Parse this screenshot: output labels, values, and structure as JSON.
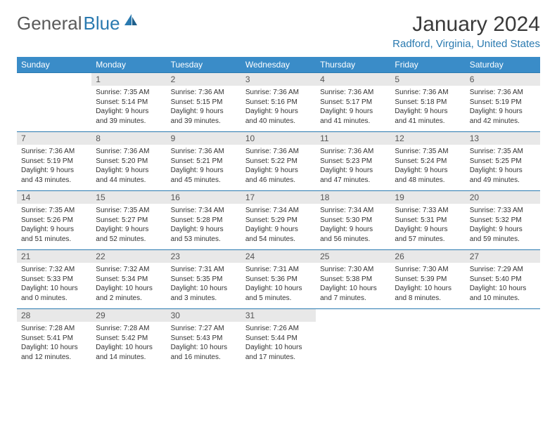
{
  "brand": {
    "part1": "General",
    "part2": "Blue"
  },
  "title": "January 2024",
  "location": "Radford, Virginia, United States",
  "colors": {
    "header_bg": "#3a8cc8",
    "accent": "#2a7ab0",
    "daynum_bg": "#e8e8e8",
    "text": "#333333"
  },
  "day_labels": [
    "Sunday",
    "Monday",
    "Tuesday",
    "Wednesday",
    "Thursday",
    "Friday",
    "Saturday"
  ],
  "weeks": [
    [
      {
        "n": "",
        "l1": "",
        "l2": "",
        "l3": "",
        "l4": ""
      },
      {
        "n": "1",
        "l1": "Sunrise: 7:35 AM",
        "l2": "Sunset: 5:14 PM",
        "l3": "Daylight: 9 hours",
        "l4": "and 39 minutes."
      },
      {
        "n": "2",
        "l1": "Sunrise: 7:36 AM",
        "l2": "Sunset: 5:15 PM",
        "l3": "Daylight: 9 hours",
        "l4": "and 39 minutes."
      },
      {
        "n": "3",
        "l1": "Sunrise: 7:36 AM",
        "l2": "Sunset: 5:16 PM",
        "l3": "Daylight: 9 hours",
        "l4": "and 40 minutes."
      },
      {
        "n": "4",
        "l1": "Sunrise: 7:36 AM",
        "l2": "Sunset: 5:17 PM",
        "l3": "Daylight: 9 hours",
        "l4": "and 41 minutes."
      },
      {
        "n": "5",
        "l1": "Sunrise: 7:36 AM",
        "l2": "Sunset: 5:18 PM",
        "l3": "Daylight: 9 hours",
        "l4": "and 41 minutes."
      },
      {
        "n": "6",
        "l1": "Sunrise: 7:36 AM",
        "l2": "Sunset: 5:19 PM",
        "l3": "Daylight: 9 hours",
        "l4": "and 42 minutes."
      }
    ],
    [
      {
        "n": "7",
        "l1": "Sunrise: 7:36 AM",
        "l2": "Sunset: 5:19 PM",
        "l3": "Daylight: 9 hours",
        "l4": "and 43 minutes."
      },
      {
        "n": "8",
        "l1": "Sunrise: 7:36 AM",
        "l2": "Sunset: 5:20 PM",
        "l3": "Daylight: 9 hours",
        "l4": "and 44 minutes."
      },
      {
        "n": "9",
        "l1": "Sunrise: 7:36 AM",
        "l2": "Sunset: 5:21 PM",
        "l3": "Daylight: 9 hours",
        "l4": "and 45 minutes."
      },
      {
        "n": "10",
        "l1": "Sunrise: 7:36 AM",
        "l2": "Sunset: 5:22 PM",
        "l3": "Daylight: 9 hours",
        "l4": "and 46 minutes."
      },
      {
        "n": "11",
        "l1": "Sunrise: 7:36 AM",
        "l2": "Sunset: 5:23 PM",
        "l3": "Daylight: 9 hours",
        "l4": "and 47 minutes."
      },
      {
        "n": "12",
        "l1": "Sunrise: 7:35 AM",
        "l2": "Sunset: 5:24 PM",
        "l3": "Daylight: 9 hours",
        "l4": "and 48 minutes."
      },
      {
        "n": "13",
        "l1": "Sunrise: 7:35 AM",
        "l2": "Sunset: 5:25 PM",
        "l3": "Daylight: 9 hours",
        "l4": "and 49 minutes."
      }
    ],
    [
      {
        "n": "14",
        "l1": "Sunrise: 7:35 AM",
        "l2": "Sunset: 5:26 PM",
        "l3": "Daylight: 9 hours",
        "l4": "and 51 minutes."
      },
      {
        "n": "15",
        "l1": "Sunrise: 7:35 AM",
        "l2": "Sunset: 5:27 PM",
        "l3": "Daylight: 9 hours",
        "l4": "and 52 minutes."
      },
      {
        "n": "16",
        "l1": "Sunrise: 7:34 AM",
        "l2": "Sunset: 5:28 PM",
        "l3": "Daylight: 9 hours",
        "l4": "and 53 minutes."
      },
      {
        "n": "17",
        "l1": "Sunrise: 7:34 AM",
        "l2": "Sunset: 5:29 PM",
        "l3": "Daylight: 9 hours",
        "l4": "and 54 minutes."
      },
      {
        "n": "18",
        "l1": "Sunrise: 7:34 AM",
        "l2": "Sunset: 5:30 PM",
        "l3": "Daylight: 9 hours",
        "l4": "and 56 minutes."
      },
      {
        "n": "19",
        "l1": "Sunrise: 7:33 AM",
        "l2": "Sunset: 5:31 PM",
        "l3": "Daylight: 9 hours",
        "l4": "and 57 minutes."
      },
      {
        "n": "20",
        "l1": "Sunrise: 7:33 AM",
        "l2": "Sunset: 5:32 PM",
        "l3": "Daylight: 9 hours",
        "l4": "and 59 minutes."
      }
    ],
    [
      {
        "n": "21",
        "l1": "Sunrise: 7:32 AM",
        "l2": "Sunset: 5:33 PM",
        "l3": "Daylight: 10 hours",
        "l4": "and 0 minutes."
      },
      {
        "n": "22",
        "l1": "Sunrise: 7:32 AM",
        "l2": "Sunset: 5:34 PM",
        "l3": "Daylight: 10 hours",
        "l4": "and 2 minutes."
      },
      {
        "n": "23",
        "l1": "Sunrise: 7:31 AM",
        "l2": "Sunset: 5:35 PM",
        "l3": "Daylight: 10 hours",
        "l4": "and 3 minutes."
      },
      {
        "n": "24",
        "l1": "Sunrise: 7:31 AM",
        "l2": "Sunset: 5:36 PM",
        "l3": "Daylight: 10 hours",
        "l4": "and 5 minutes."
      },
      {
        "n": "25",
        "l1": "Sunrise: 7:30 AM",
        "l2": "Sunset: 5:38 PM",
        "l3": "Daylight: 10 hours",
        "l4": "and 7 minutes."
      },
      {
        "n": "26",
        "l1": "Sunrise: 7:30 AM",
        "l2": "Sunset: 5:39 PM",
        "l3": "Daylight: 10 hours",
        "l4": "and 8 minutes."
      },
      {
        "n": "27",
        "l1": "Sunrise: 7:29 AM",
        "l2": "Sunset: 5:40 PM",
        "l3": "Daylight: 10 hours",
        "l4": "and 10 minutes."
      }
    ],
    [
      {
        "n": "28",
        "l1": "Sunrise: 7:28 AM",
        "l2": "Sunset: 5:41 PM",
        "l3": "Daylight: 10 hours",
        "l4": "and 12 minutes."
      },
      {
        "n": "29",
        "l1": "Sunrise: 7:28 AM",
        "l2": "Sunset: 5:42 PM",
        "l3": "Daylight: 10 hours",
        "l4": "and 14 minutes."
      },
      {
        "n": "30",
        "l1": "Sunrise: 7:27 AM",
        "l2": "Sunset: 5:43 PM",
        "l3": "Daylight: 10 hours",
        "l4": "and 16 minutes."
      },
      {
        "n": "31",
        "l1": "Sunrise: 7:26 AM",
        "l2": "Sunset: 5:44 PM",
        "l3": "Daylight: 10 hours",
        "l4": "and 17 minutes."
      },
      {
        "n": "",
        "l1": "",
        "l2": "",
        "l3": "",
        "l4": ""
      },
      {
        "n": "",
        "l1": "",
        "l2": "",
        "l3": "",
        "l4": ""
      },
      {
        "n": "",
        "l1": "",
        "l2": "",
        "l3": "",
        "l4": ""
      }
    ]
  ]
}
